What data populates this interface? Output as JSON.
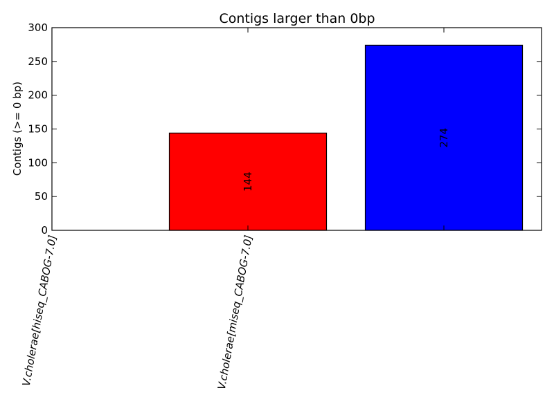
{
  "chart_data": {
    "type": "bar",
    "title": "Contigs larger than 0bp",
    "xlabel": "",
    "ylabel": "Contigs (>= 0 bp)",
    "ylim": [
      0,
      300
    ],
    "yticks": [
      0,
      50,
      100,
      150,
      200,
      250,
      300
    ],
    "grid": false,
    "categories": [
      "V.cholerae[hiseq_CABOG-7.0]",
      "V.cholerae[miseq_CABOG-7.0]",
      ""
    ],
    "values": [
      0,
      144,
      274
    ],
    "data_labels": [
      "",
      "144",
      "274"
    ],
    "colors": [
      "#ff0000",
      "#ff0000",
      "#0000ff"
    ]
  }
}
